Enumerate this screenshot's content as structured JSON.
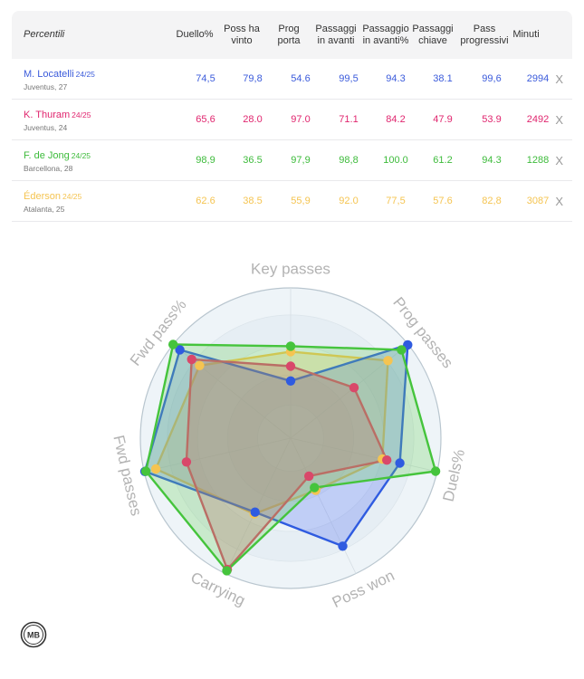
{
  "table": {
    "header_label": "Percentili",
    "columns": [
      "Duello%",
      "Poss ha vinto",
      "Prog porta",
      "Passaggi in avanti",
      "Passaggio in avanti%",
      "Passaggi chiave",
      "Pass progressivi",
      "Minuti"
    ],
    "remove_label": "X",
    "rows": [
      {
        "name": "M. Locatelli",
        "season": "24/25",
        "meta": "Juventus, 27",
        "color": "#3b5bdb",
        "values": [
          "74,5",
          "79,8",
          "54.6",
          "99,5",
          "94.3",
          "38.1",
          "99,6",
          "2994"
        ]
      },
      {
        "name": "K. Thuram",
        "season": "24/25",
        "meta": "Juventus, 24",
        "color": "#e0256e",
        "values": [
          "65,6",
          "28.0",
          "97.0",
          "71.1",
          "84.2",
          "47.9",
          "53.9",
          "2492"
        ]
      },
      {
        "name": "F. de Jong",
        "season": "24/25",
        "meta": "Barcellona, 28",
        "color": "#3dbb3b",
        "values": [
          "98,9",
          "36.5",
          "97,9",
          "98,8",
          "100.0",
          "61.2",
          "94.3",
          "1288"
        ]
      },
      {
        "name": "Éderson",
        "season": "24/25",
        "meta": "Atalanta, 25",
        "color": "#f5c451",
        "values": [
          "62.6",
          "38.5",
          "55,9",
          "92.0",
          "77,5",
          "57.6",
          "82,8",
          "3087"
        ]
      }
    ]
  },
  "chart_data": {
    "type": "radar",
    "axes": [
      "Key passes",
      "Prog passes",
      "Duels%",
      "Poss won",
      "Carrying",
      "Fwd passes",
      "Fwd pass%"
    ],
    "range": [
      0,
      100
    ],
    "grid": true,
    "series": [
      {
        "name": "M. Locatelli",
        "color": "#2f5be0",
        "fill": "#4a6cf0",
        "values": [
          38.1,
          99.6,
          74.5,
          79.8,
          54.6,
          99.5,
          94.3
        ]
      },
      {
        "name": "K. Thuram",
        "color": "#d9486a",
        "fill": "#d9486a",
        "values": [
          47.9,
          53.9,
          65.6,
          28.0,
          97.0,
          71.1,
          84.2
        ]
      },
      {
        "name": "F. de Jong",
        "color": "#45c43c",
        "fill": "#6cd15a",
        "values": [
          61.2,
          94.3,
          98.9,
          36.5,
          97.9,
          98.8,
          100.0
        ]
      },
      {
        "name": "Éderson",
        "color": "#f5c451",
        "fill": "#f5c451",
        "values": [
          57.6,
          82.8,
          62.6,
          38.5,
          55.9,
          92.0,
          77.5
        ]
      }
    ]
  },
  "logo": {
    "text": "MB"
  }
}
